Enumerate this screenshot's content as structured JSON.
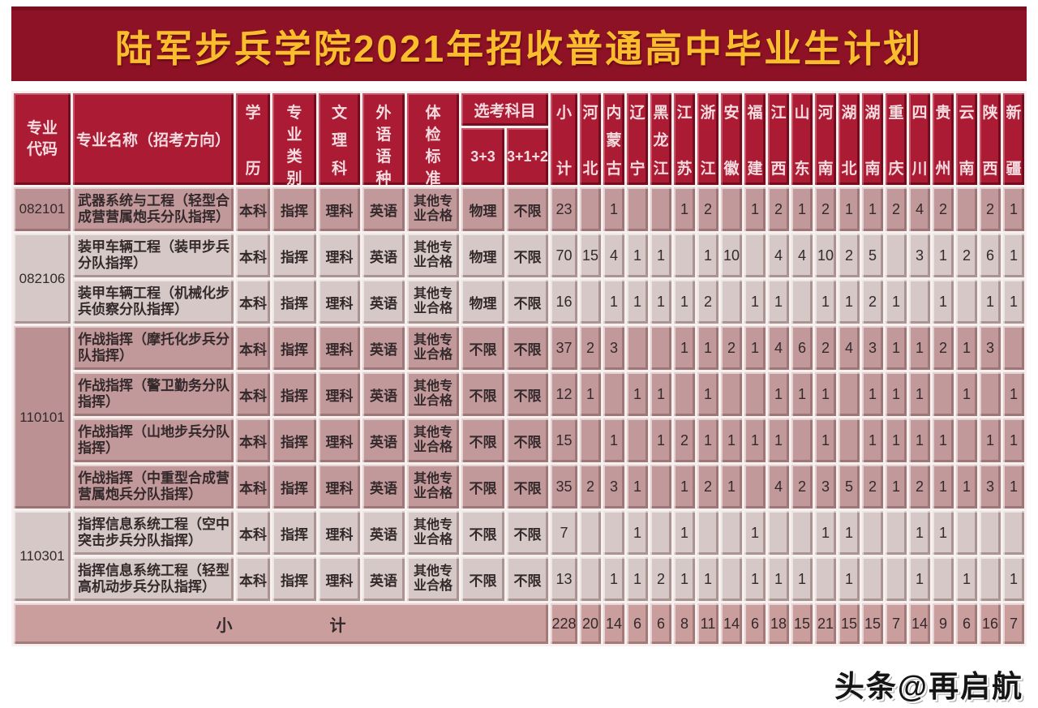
{
  "title": "陆军步兵学院2021年招收普通高中毕业生计划",
  "watermark": "头条@再启航",
  "colors": {
    "banner_bg": "#8e1226",
    "banner_text": "#f9bd2e",
    "header_bg": "#ac1b34",
    "row_dark_bg": "#c2999b",
    "row_light_bg": "#d5c8c6",
    "totals_bg": "#cb9e9e"
  },
  "table": {
    "headers": {
      "code": "专业代码",
      "name": "专业名称（招考方向）",
      "degree": "学历",
      "category": "专业类别",
      "track": "文理科",
      "language": "外语语种",
      "medical": "体检标准",
      "elective": "选考科目",
      "elective_33": "3+3",
      "elective_312": "3+1+2",
      "subtotal": "小计",
      "provinces": [
        "河北",
        "内蒙古",
        "辽宁",
        "黑龙江",
        "江苏",
        "浙江",
        "安徽",
        "福建",
        "江西",
        "山东",
        "河南",
        "湖北",
        "湖南",
        "重庆",
        "四川",
        "贵州",
        "云南",
        "陕西",
        "新疆"
      ]
    },
    "rows": [
      {
        "code": "082101",
        "code_span": 1,
        "name": "武器系统与工程（轻型合成营营属炮兵分队指挥）",
        "degree": "本科",
        "category": "指挥",
        "track": "理科",
        "language": "英语",
        "medical": "其他专业合格",
        "exam_33": "物理",
        "exam_312": "不限",
        "subtotal": "23",
        "values": [
          "",
          "1",
          "",
          "",
          "1",
          "2",
          "",
          "1",
          "2",
          "1",
          "2",
          "1",
          "1",
          "2",
          "4",
          "2",
          "",
          "2",
          "1"
        ]
      },
      {
        "code": "082106",
        "code_span": 2,
        "name": "装甲车辆工程（装甲步兵分队指挥）",
        "degree": "本科",
        "category": "指挥",
        "track": "理科",
        "language": "英语",
        "medical": "其他专业合格",
        "exam_33": "物理",
        "exam_312": "不限",
        "subtotal": "70",
        "values": [
          "15",
          "4",
          "1",
          "1",
          "",
          "1",
          "10",
          "",
          "4",
          "4",
          "10",
          "2",
          "5",
          "",
          "3",
          "1",
          "2",
          "6",
          "1"
        ]
      },
      {
        "name": "装甲车辆工程（机械化步兵侦察分队指挥）",
        "degree": "本科",
        "category": "指挥",
        "track": "理科",
        "language": "英语",
        "medical": "其他专业合格",
        "exam_33": "物理",
        "exam_312": "不限",
        "subtotal": "16",
        "values": [
          "",
          "1",
          "1",
          "1",
          "1",
          "2",
          "",
          "1",
          "1",
          "",
          "1",
          "1",
          "2",
          "1",
          "",
          "1",
          "",
          "1",
          "1"
        ]
      },
      {
        "code": "110101",
        "code_span": 4,
        "name": "作战指挥（摩托化步兵分队指挥）",
        "degree": "本科",
        "category": "指挥",
        "track": "理科",
        "language": "英语",
        "medical": "其他专业合格",
        "exam_33": "不限",
        "exam_312": "不限",
        "subtotal": "37",
        "values": [
          "2",
          "3",
          "",
          "",
          "1",
          "1",
          "2",
          "1",
          "4",
          "6",
          "2",
          "4",
          "3",
          "1",
          "1",
          "2",
          "1",
          "3",
          ""
        ]
      },
      {
        "name": "作战指挥（警卫勤务分队指挥）",
        "degree": "本科",
        "category": "指挥",
        "track": "理科",
        "language": "英语",
        "medical": "其他专业合格",
        "exam_33": "不限",
        "exam_312": "不限",
        "subtotal": "12",
        "values": [
          "1",
          "",
          "1",
          "1",
          "",
          "1",
          "",
          "",
          "1",
          "1",
          "1",
          "",
          "1",
          "1",
          "1",
          "",
          "1",
          "",
          "1"
        ]
      },
      {
        "name": "作战指挥（山地步兵分队指挥）",
        "degree": "本科",
        "category": "指挥",
        "track": "理科",
        "language": "英语",
        "medical": "其他专业合格",
        "exam_33": "不限",
        "exam_312": "不限",
        "subtotal": "15",
        "values": [
          "",
          "1",
          "",
          "1",
          "2",
          "1",
          "1",
          "1",
          "1",
          "",
          "1",
          "",
          "1",
          "1",
          "1",
          "1",
          "",
          "1",
          "1"
        ]
      },
      {
        "name": "作战指挥（中重型合成营营属炮兵分队指挥）",
        "degree": "本科",
        "category": "指挥",
        "track": "理科",
        "language": "英语",
        "medical": "其他专业合格",
        "exam_33": "不限",
        "exam_312": "不限",
        "subtotal": "35",
        "values": [
          "2",
          "3",
          "1",
          "",
          "1",
          "2",
          "1",
          "",
          "4",
          "2",
          "3",
          "5",
          "2",
          "1",
          "2",
          "1",
          "1",
          "3",
          "1"
        ]
      },
      {
        "code": "110301",
        "code_span": 2,
        "name": "指挥信息系统工程（空中突击步兵分队指挥）",
        "degree": "本科",
        "category": "指挥",
        "track": "理科",
        "language": "英语",
        "medical": "其他专业合格",
        "exam_33": "不限",
        "exam_312": "不限",
        "subtotal": "7",
        "values": [
          "",
          "",
          "1",
          "",
          "1",
          "",
          "",
          "1",
          "",
          "",
          "1",
          "1",
          "",
          "",
          "1",
          "1",
          "",
          "",
          ""
        ]
      },
      {
        "name": "指挥信息系统工程（轻型高机动步兵分队指挥）",
        "degree": "本科",
        "category": "指挥",
        "track": "理科",
        "language": "英语",
        "medical": "其他专业合格",
        "exam_33": "不限",
        "exam_312": "不限",
        "subtotal": "13",
        "values": [
          "",
          "1",
          "1",
          "2",
          "1",
          "1",
          "",
          "1",
          "1",
          "1",
          "",
          "1",
          "",
          "",
          "1",
          "",
          "1",
          "",
          "1"
        ]
      }
    ],
    "totals": {
      "label": "小计",
      "subtotal": "228",
      "values": [
        "20",
        "14",
        "6",
        "6",
        "8",
        "11",
        "14",
        "6",
        "18",
        "15",
        "21",
        "15",
        "15",
        "7",
        "14",
        "9",
        "6",
        "16",
        "7"
      ]
    }
  }
}
